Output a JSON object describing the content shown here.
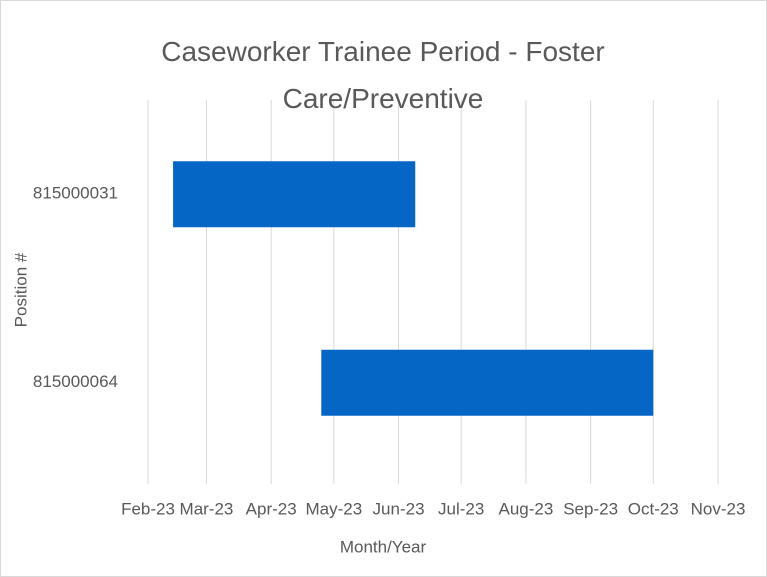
{
  "chart_data": {
    "type": "gantt",
    "title": "Caseworker Trainee Period - Foster Care/Preventive",
    "x_label": "Month/Year",
    "y_label": "Position #",
    "categories": [
      "815000031",
      "815000064"
    ],
    "starts": [
      44970,
      45041
    ],
    "ends": [
      45086,
      45200
    ],
    "color": "#0566c6",
    "xlim": [
      44958,
      45231
    ],
    "xticks": [
      {
        "value": 44958,
        "label": "Feb-23"
      },
      {
        "value": 44986,
        "label": "Mar-23"
      },
      {
        "value": 45017,
        "label": "Apr-23"
      },
      {
        "value": 45047,
        "label": "May-23"
      },
      {
        "value": 45078,
        "label": "Jun-23"
      },
      {
        "value": 45108,
        "label": "Jul-23"
      },
      {
        "value": 45139,
        "label": "Aug-23"
      },
      {
        "value": 45170,
        "label": "Sep-23"
      },
      {
        "value": 45200,
        "label": "Oct-23"
      },
      {
        "value": 45231,
        "label": "Nov-23"
      }
    ],
    "grid": true
  }
}
